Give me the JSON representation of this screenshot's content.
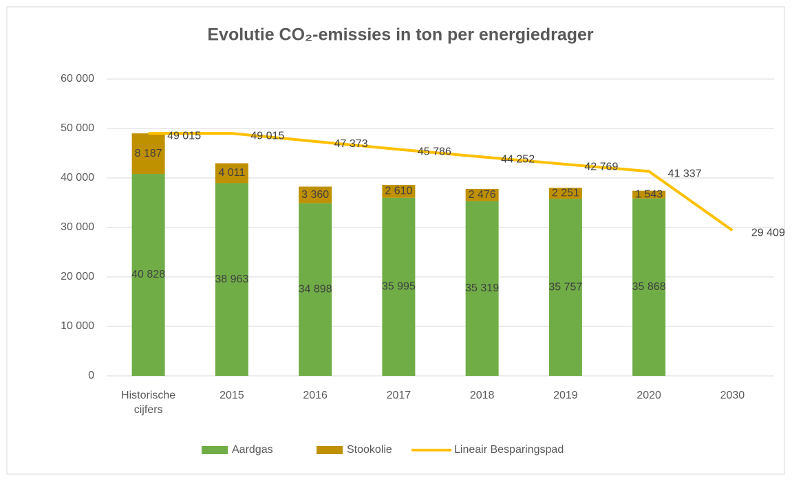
{
  "chart_data": {
    "type": "stacked_bar_line",
    "title": "Evolutie CO₂-emissies in ton per energiedrager",
    "categories": [
      "Historische cijfers",
      "2015",
      "2016",
      "2017",
      "2018",
      "2019",
      "2020",
      "2030"
    ],
    "series": [
      {
        "name": "Aardgas",
        "type": "bar",
        "color": "#70ad47",
        "values": [
          40828,
          38963,
          34898,
          35995,
          35319,
          35757,
          35868,
          null
        ],
        "value_labels": [
          "40 828",
          "38 963",
          "34 898",
          "35 995",
          "35 319",
          "35 757",
          "35 868",
          null
        ]
      },
      {
        "name": "Stookolie",
        "type": "bar",
        "color": "#bf9000",
        "values": [
          8187,
          4011,
          3360,
          2610,
          2476,
          2251,
          1543,
          null
        ],
        "value_labels": [
          "8 187",
          "4 011",
          "3 360",
          "2 610",
          "2 476",
          "2 251",
          "1 543",
          null
        ]
      },
      {
        "name": "Lineair Besparingspad",
        "type": "line",
        "color": "#ffc000",
        "values": [
          49015,
          49015,
          47373,
          45786,
          44252,
          42769,
          41337,
          29409
        ],
        "value_labels": [
          "49 015",
          "49 015",
          "47 373",
          "45 786",
          "44 252",
          "42 769",
          "41 337",
          "29 409"
        ]
      }
    ],
    "ylim": [
      0,
      60000
    ],
    "yticks": [
      0,
      {
        "value": 10000,
        "label": "10 000"
      },
      {
        "value": 20000,
        "label": "20 000"
      },
      {
        "value": 30000,
        "label": "30 000"
      },
      {
        "value": 40000,
        "label": "40 000"
      },
      {
        "value": 50000,
        "label": "50 000"
      },
      {
        "value": 60000,
        "label": "60 000"
      }
    ],
    "grid": true,
    "legend": "bottom"
  }
}
